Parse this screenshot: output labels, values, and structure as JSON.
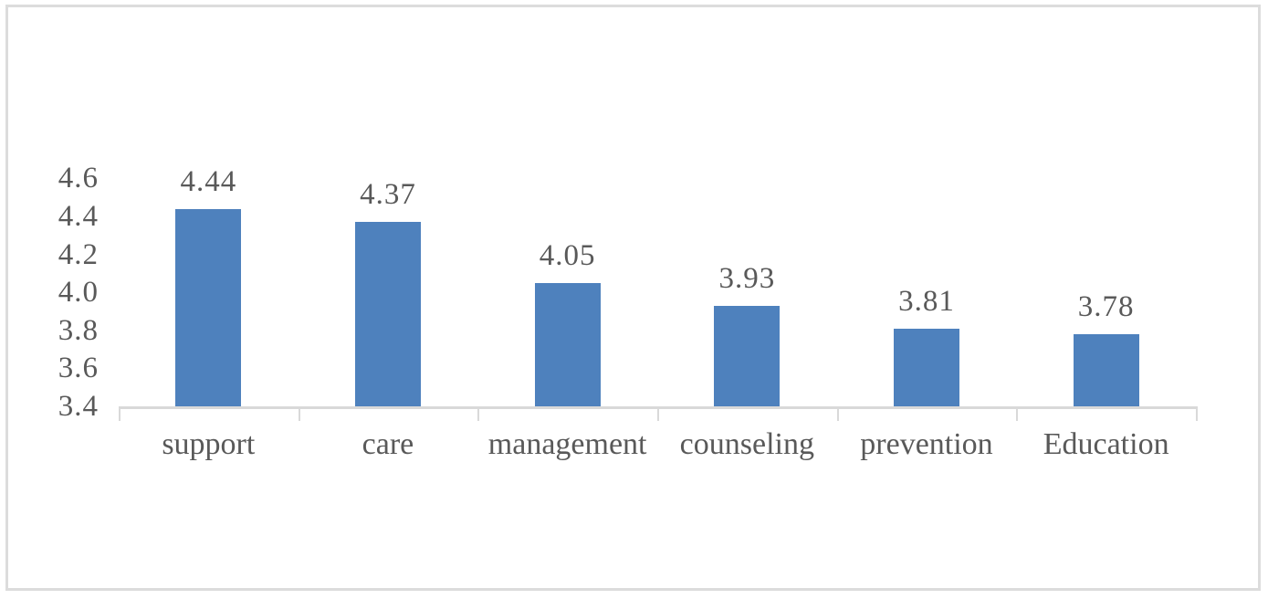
{
  "chart_data": {
    "type": "bar",
    "categories": [
      "support",
      "care",
      "management",
      "counseling",
      "prevention",
      "Education"
    ],
    "values": [
      4.44,
      4.37,
      4.05,
      3.93,
      3.81,
      3.78
    ],
    "value_labels": [
      "4.44",
      "4.37",
      "4.05",
      "3.93",
      "3.81",
      "3.78"
    ],
    "title": "",
    "xlabel": "",
    "ylabel": "",
    "ylim": [
      3.4,
      4.6
    ],
    "ytick_step": 0.2,
    "ytick_labels": [
      "4.6",
      "4.4",
      "4.2",
      "4.0",
      "3.8",
      "3.6",
      "3.4"
    ],
    "grid": false,
    "legend": false,
    "data_labels": true,
    "colors": {
      "bar": "#4e81bd",
      "text": "#595959",
      "axis": "#d9d9d9",
      "frame_border": "#dcdcdc",
      "background": "#ffffff"
    }
  }
}
